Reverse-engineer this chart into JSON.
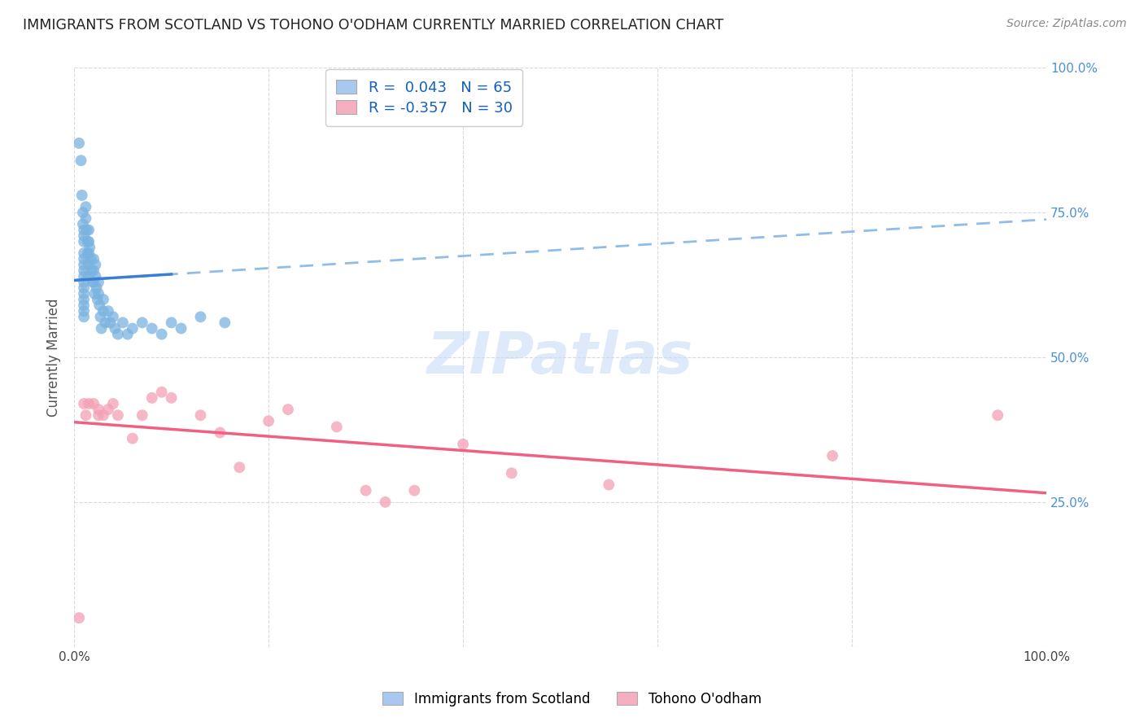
{
  "title": "IMMIGRANTS FROM SCOTLAND VS TOHONO O'ODHAM CURRENTLY MARRIED CORRELATION CHART",
  "source": "Source: ZipAtlas.com",
  "ylabel": "Currently Married",
  "xlim": [
    0,
    1.0
  ],
  "ylim": [
    0,
    1.0
  ],
  "blue_R": 0.043,
  "blue_N": 65,
  "pink_R": -0.357,
  "pink_N": 30,
  "blue_color": "#7ab3e0",
  "pink_color": "#f4a0b5",
  "blue_line_color": "#3a7fd5",
  "pink_line_color": "#f06080",
  "dashed_line_color": "#90bce8",
  "background_color": "#ffffff",
  "grid_color": "#d8d8e8",
  "blue_scatter_x": [
    0.005,
    0.007,
    0.008,
    0.009,
    0.009,
    0.01,
    0.01,
    0.01,
    0.01,
    0.01,
    0.01,
    0.01,
    0.01,
    0.01,
    0.01,
    0.01,
    0.01,
    0.01,
    0.01,
    0.01,
    0.012,
    0.012,
    0.013,
    0.014,
    0.014,
    0.015,
    0.015,
    0.015,
    0.015,
    0.015,
    0.016,
    0.017,
    0.018,
    0.019,
    0.02,
    0.02,
    0.02,
    0.021,
    0.022,
    0.022,
    0.023,
    0.024,
    0.025,
    0.025,
    0.026,
    0.027,
    0.028,
    0.03,
    0.03,
    0.032,
    0.035,
    0.037,
    0.04,
    0.042,
    0.045,
    0.05,
    0.055,
    0.06,
    0.07,
    0.08,
    0.09,
    0.1,
    0.11,
    0.13,
    0.155
  ],
  "blue_scatter_y": [
    0.87,
    0.84,
    0.78,
    0.75,
    0.73,
    0.72,
    0.71,
    0.7,
    0.68,
    0.67,
    0.66,
    0.65,
    0.64,
    0.63,
    0.62,
    0.61,
    0.6,
    0.59,
    0.58,
    0.57,
    0.76,
    0.74,
    0.72,
    0.7,
    0.68,
    0.72,
    0.7,
    0.68,
    0.66,
    0.64,
    0.69,
    0.67,
    0.65,
    0.63,
    0.67,
    0.65,
    0.63,
    0.61,
    0.66,
    0.64,
    0.62,
    0.6,
    0.63,
    0.61,
    0.59,
    0.57,
    0.55,
    0.6,
    0.58,
    0.56,
    0.58,
    0.56,
    0.57,
    0.55,
    0.54,
    0.56,
    0.54,
    0.55,
    0.56,
    0.55,
    0.54,
    0.56,
    0.55,
    0.57,
    0.56
  ],
  "pink_scatter_x": [
    0.005,
    0.01,
    0.012,
    0.015,
    0.02,
    0.025,
    0.025,
    0.03,
    0.035,
    0.04,
    0.045,
    0.06,
    0.07,
    0.08,
    0.09,
    0.1,
    0.13,
    0.15,
    0.17,
    0.2,
    0.22,
    0.27,
    0.3,
    0.32,
    0.35,
    0.4,
    0.45,
    0.55,
    0.78,
    0.95
  ],
  "pink_scatter_y": [
    0.05,
    0.42,
    0.4,
    0.42,
    0.42,
    0.41,
    0.4,
    0.4,
    0.41,
    0.42,
    0.4,
    0.36,
    0.4,
    0.43,
    0.44,
    0.43,
    0.4,
    0.37,
    0.31,
    0.39,
    0.41,
    0.38,
    0.27,
    0.25,
    0.27,
    0.35,
    0.3,
    0.28,
    0.33,
    0.4
  ],
  "legend_label_blue": "R =  0.043   N = 65",
  "legend_label_pink": "R = -0.357   N = 30",
  "bottom_label_blue": "Immigrants from Scotland",
  "bottom_label_pink": "Tohono O'odham"
}
